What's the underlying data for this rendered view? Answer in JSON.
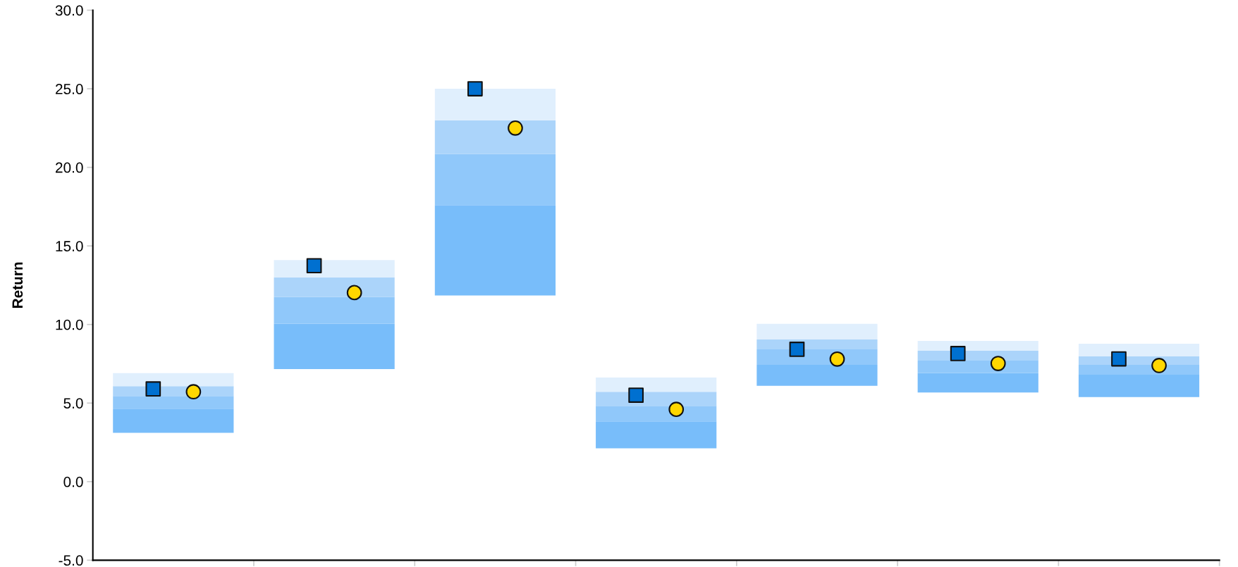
{
  "chart_data": {
    "type": "bar",
    "ylabel": "Return",
    "categories": [
      null,
      null,
      null,
      null,
      null,
      null,
      null
    ],
    "series": [
      {
        "color": "#78bdfa",
        "base": [
          3.11,
          7.16,
          11.85,
          2.12,
          6.1,
          5.67,
          5.38
        ],
        "values": [
          1.53,
          2.88,
          5.75,
          1.71,
          1.33,
          1.23,
          1.42
        ]
      },
      {
        "color": "#90c8fa",
        "base": [
          4.64,
          10.04,
          17.6,
          3.83,
          7.43,
          6.9,
          6.8
        ],
        "values": [
          0.81,
          1.72,
          3.26,
          0.99,
          0.99,
          0.8,
          0.63
        ]
      },
      {
        "color": "#abd4fa",
        "base": [
          5.45,
          11.76,
          20.86,
          4.82,
          8.42,
          7.7,
          7.43
        ],
        "values": [
          0.63,
          1.24,
          2.14,
          0.9,
          0.63,
          0.63,
          0.54
        ]
      },
      {
        "color": "#e0effd",
        "base": [
          6.08,
          13.0,
          23.0,
          5.72,
          9.05,
          8.33,
          7.97
        ],
        "values": [
          0.82,
          1.1,
          2.0,
          0.9,
          0.99,
          0.63,
          0.81
        ]
      },
      {
        "type": "scatter",
        "marker": "square",
        "color": "#0070d0",
        "values": [
          5.9,
          13.74,
          25.0,
          5.5,
          8.42,
          8.15,
          7.81
        ]
      },
      {
        "type": "scatter",
        "marker": "circle",
        "color": "#ffd700",
        "values": [
          5.72,
          12.03,
          22.5,
          4.6,
          7.8,
          7.52,
          7.39
        ]
      }
    ],
    "ylim": [
      -5,
      30
    ],
    "yticks": [
      {
        "value": -5,
        "label": "-5.0"
      },
      {
        "value": 0,
        "label": "0.0"
      },
      {
        "value": 5,
        "label": "5.0"
      },
      {
        "value": 10,
        "label": "10.0"
      },
      {
        "value": 15,
        "label": "15.0"
      },
      {
        "value": 20,
        "label": "20.0"
      },
      {
        "value": 25,
        "label": "25.0"
      },
      {
        "value": 30,
        "label": "30.0"
      }
    ],
    "grid": false,
    "legend": false
  }
}
